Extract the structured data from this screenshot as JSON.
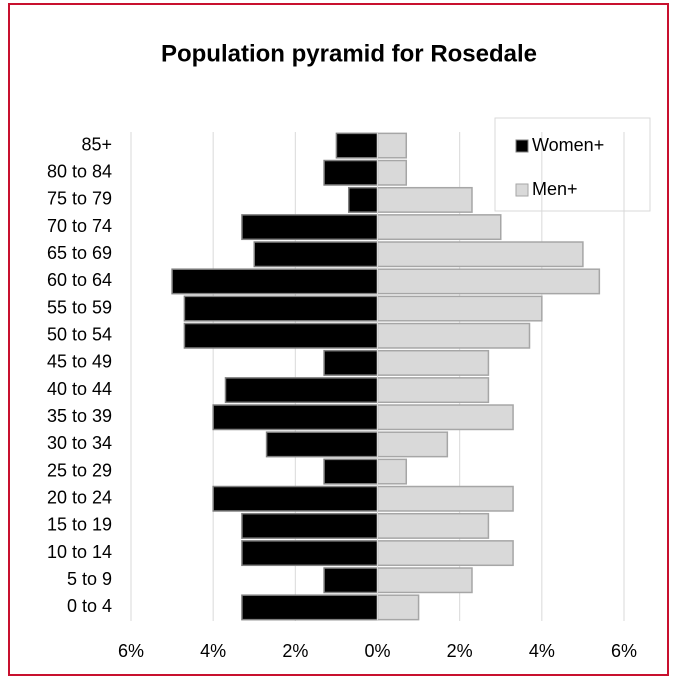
{
  "chart_data": {
    "type": "bar",
    "orientation": "horizontal",
    "title": "Population pyramid for Rosedale",
    "categories": [
      "85+",
      "80 to 84",
      "75 to 79",
      "70 to 74",
      "65 to 69",
      "60 to 64",
      "55 to 59",
      "50 to 54",
      "45 to 49",
      "40 to 44",
      "35 to 39",
      "30 to 34",
      "25 to 29",
      "20 to 24",
      "15 to 19",
      "10 to 14",
      "5 to 9",
      "0 to 4"
    ],
    "series": [
      {
        "name": "Women+",
        "color": "#000000",
        "values": [
          -1.0,
          -1.3,
          -0.7,
          -3.3,
          -3.0,
          -5.0,
          -4.7,
          -4.7,
          -1.3,
          -3.7,
          -4.0,
          -2.7,
          -1.3,
          -4.0,
          -3.3,
          -3.3,
          -1.3,
          -3.3
        ]
      },
      {
        "name": "Men+",
        "color": "#d9d9d9",
        "values": [
          0.7,
          0.7,
          2.3,
          3.0,
          5.0,
          5.4,
          4.0,
          3.7,
          2.7,
          2.7,
          3.3,
          1.7,
          0.7,
          3.3,
          2.7,
          3.3,
          2.3,
          1.0
        ]
      }
    ],
    "xlim": [
      -6,
      6
    ],
    "xticks": [
      {
        "value": -6,
        "label": "6%"
      },
      {
        "value": -4,
        "label": "4%"
      },
      {
        "value": -2,
        "label": "2%"
      },
      {
        "value": 0,
        "label": "0%"
      },
      {
        "value": 2,
        "label": "2%"
      },
      {
        "value": 4,
        "label": "4%"
      },
      {
        "value": 6,
        "label": "6%"
      }
    ],
    "grid": true,
    "legend": "top-right"
  }
}
